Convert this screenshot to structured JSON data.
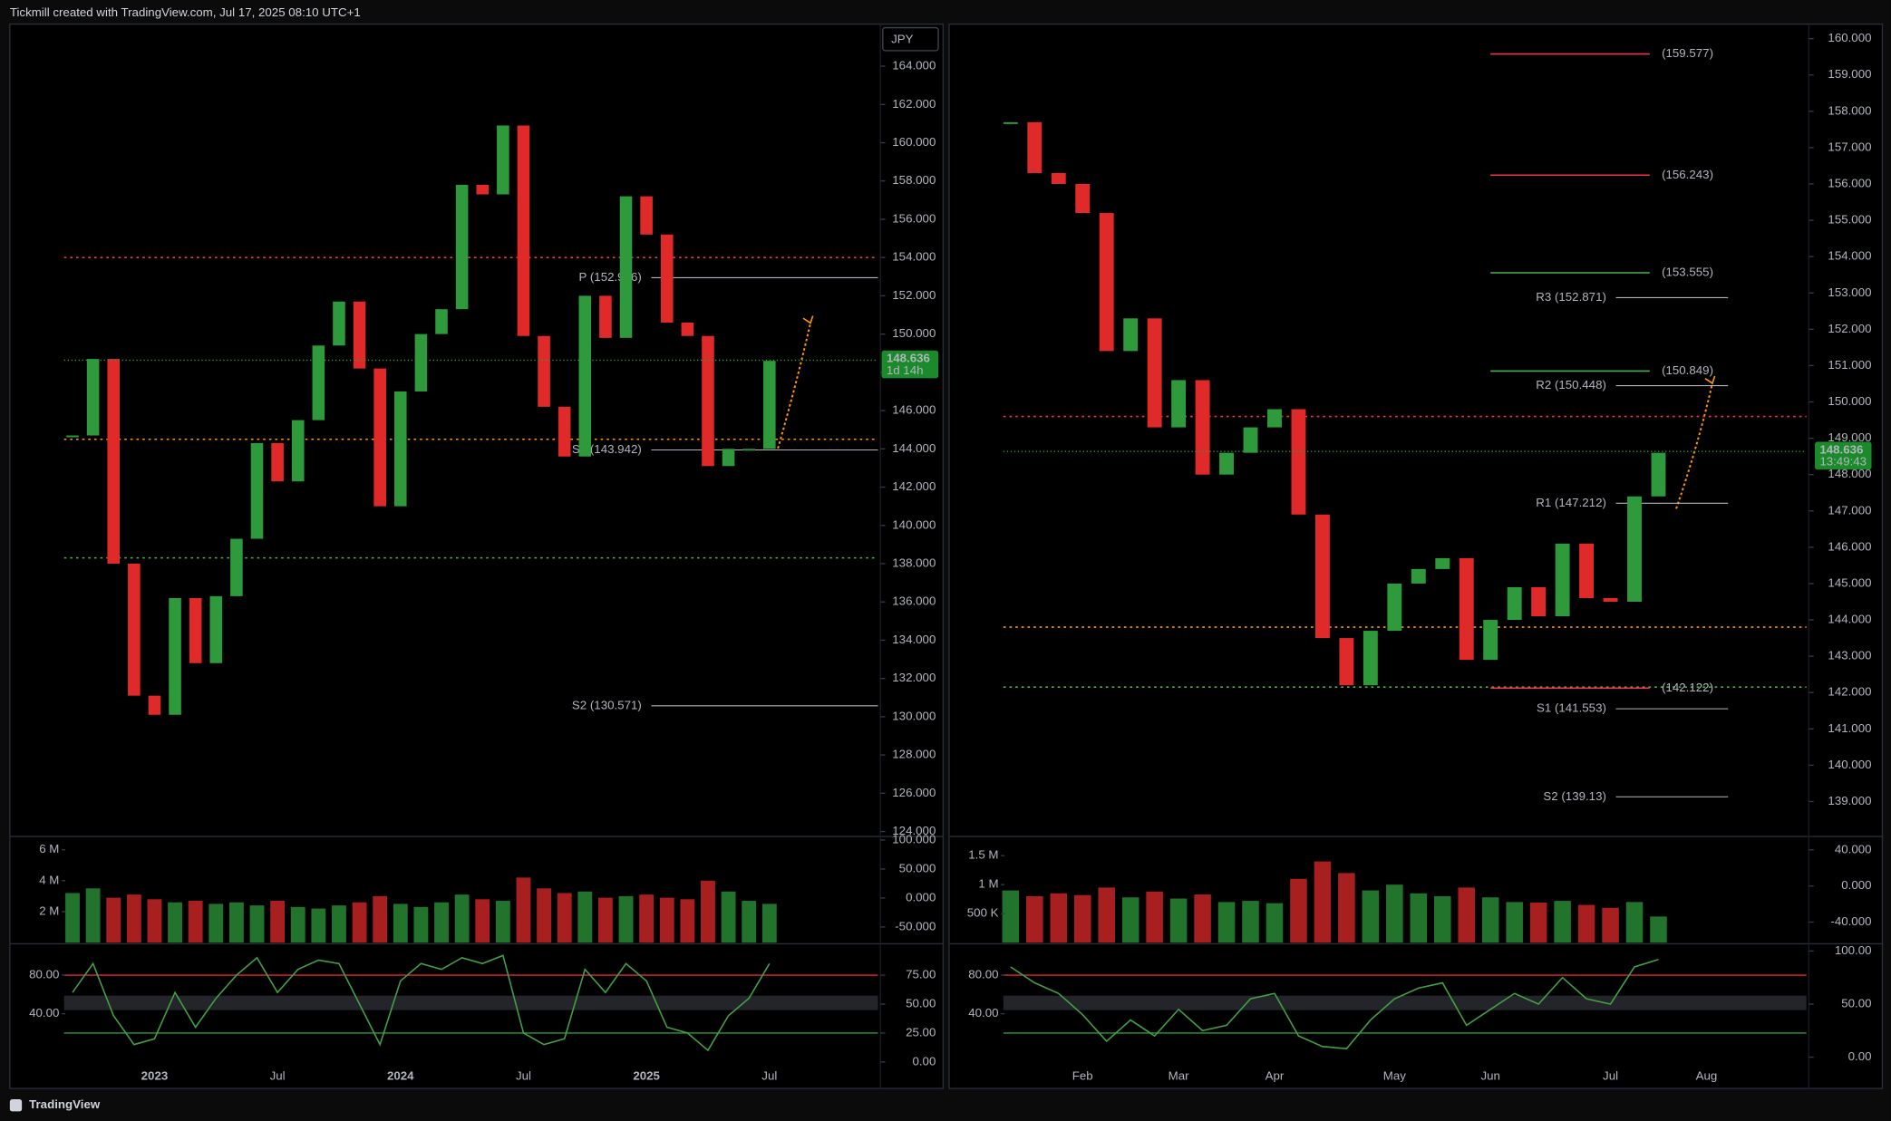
{
  "header": "Tickmill created with TradingView.com, Jul 17, 2025 08:10 UTC+1",
  "footer": "TradingView",
  "chart_data": [
    {
      "type": "candle",
      "currency": "JPY",
      "categories": [
        null,
        null,
        null,
        null,
        "2023",
        null,
        null,
        null,
        null,
        null,
        "Jul",
        null,
        null,
        null,
        null,
        null,
        "2024",
        null,
        null,
        null,
        null,
        null,
        "Jul",
        null,
        null,
        null,
        null,
        null,
        "2025",
        null,
        null,
        null,
        null,
        null,
        "Jul"
      ],
      "values": [
        144.7,
        148.7,
        138.0,
        131.1,
        130.1,
        136.2,
        132.8,
        136.3,
        139.3,
        144.3,
        142.3,
        145.5,
        149.4,
        151.7,
        148.2,
        141.0,
        147.0,
        150.0,
        151.3,
        157.8,
        157.3,
        160.9,
        149.9,
        146.2,
        143.6,
        152.0,
        149.8,
        157.2,
        155.2,
        150.6,
        149.9,
        143.1,
        144.0,
        144.0,
        148.6
      ],
      "up_color": "#2e9a3b",
      "down_color": "#e02a2a",
      "ylim": [
        123.8,
        166.2
      ],
      "yticks": [
        {
          "value": 124,
          "label": "124.000"
        },
        {
          "value": 126,
          "label": "126.000"
        },
        {
          "value": 128,
          "label": "128.000"
        },
        {
          "value": 130,
          "label": "130.000"
        },
        {
          "value": 132,
          "label": "132.000"
        },
        {
          "value": 134,
          "label": "134.000"
        },
        {
          "value": 136,
          "label": "136.000"
        },
        {
          "value": 138,
          "label": "138.000"
        },
        {
          "value": 140,
          "label": "140.000"
        },
        {
          "value": 142,
          "label": "142.000"
        },
        {
          "value": 144,
          "label": "144.000"
        },
        {
          "value": 146,
          "label": "146.000"
        },
        {
          "value": 148,
          "label": "148.000"
        },
        {
          "value": 150,
          "label": "150.000"
        },
        {
          "value": 152,
          "label": "152.000"
        },
        {
          "value": 154,
          "label": "154.000"
        },
        {
          "value": 156,
          "label": "156.000"
        },
        {
          "value": 158,
          "label": "158.000"
        },
        {
          "value": 160,
          "label": "160.000"
        },
        {
          "value": 162,
          "label": "162.000"
        },
        {
          "value": 164,
          "label": "164.000"
        }
      ],
      "levels": [
        {
          "value": 154.0,
          "color": "#f23645"
        },
        {
          "value": 144.5,
          "color": "#ff9800"
        },
        {
          "value": 138.3,
          "color": "#4caf50"
        }
      ],
      "pivots": [
        {
          "label": "P (152.946)",
          "value": 152.946
        },
        {
          "label": "S1 (143.942)",
          "value": 143.942
        },
        {
          "label": "S2 (130.571)",
          "value": 130.571
        }
      ],
      "targets": [],
      "last_price": 148.636,
      "countdown": "1d 14h",
      "volume": {
        "values": [
          3200000,
          3500000,
          2900000,
          3100000,
          2800000,
          2600000,
          2700000,
          2500000,
          2600000,
          2400000,
          2700000,
          2300000,
          2200000,
          2400000,
          2600000,
          3000000,
          2500000,
          2300000,
          2600000,
          3100000,
          2800000,
          2700000,
          4200000,
          3500000,
          3200000,
          3300000,
          2900000,
          3000000,
          3100000,
          2900000,
          2800000,
          4000000,
          3300000,
          2700000,
          2500000
        ],
        "ylim": [
          0,
          6850000
        ],
        "yticks": [
          {
            "value": 2000000,
            "label": "2 M"
          },
          {
            "value": 4000000,
            "label": "4 M"
          },
          {
            "value": 6000000,
            "label": "6 M"
          }
        ],
        "y2lim": [
          -77,
          106
        ],
        "y2ticks": [
          {
            "value": -50,
            "label": "-50.000"
          },
          {
            "value": 0,
            "label": "0.000"
          },
          {
            "value": 50,
            "label": "50.000"
          },
          {
            "value": 100,
            "label": "100.000"
          }
        ]
      },
      "oscillator": {
        "values": [
          60,
          85,
          40,
          15,
          20,
          60,
          30,
          55,
          75,
          90,
          60,
          80,
          88,
          85,
          50,
          15,
          70,
          85,
          80,
          90,
          85,
          92,
          25,
          15,
          20,
          80,
          60,
          85,
          70,
          30,
          25,
          10,
          40,
          55,
          85
        ],
        "color": "#43a047",
        "axis": "y2",
        "ylim": [
          -10,
          110
        ],
        "yticks": [
          {
            "value": 40,
            "label": "40.00"
          },
          {
            "value": 80,
            "label": "80.00"
          }
        ],
        "y2lim": [
          0,
          100
        ],
        "y2ticks": [
          {
            "value": 0,
            "label": "0.00"
          },
          {
            "value": 25,
            "label": "25.00"
          },
          {
            "value": 50,
            "label": "50.00"
          },
          {
            "value": 75,
            "label": "75.00"
          }
        ]
      }
    },
    {
      "type": "candle",
      "categories": [
        null,
        null,
        null,
        "Feb",
        null,
        null,
        null,
        "Mar",
        null,
        null,
        null,
        "Apr",
        null,
        null,
        null,
        null,
        "May",
        null,
        null,
        null,
        "Jun",
        null,
        null,
        null,
        null,
        "Jul",
        null,
        null,
        null,
        "Aug"
      ],
      "values": [
        157.7,
        156.3,
        156.0,
        155.2,
        151.4,
        152.3,
        149.3,
        150.6,
        148.0,
        148.6,
        149.3,
        149.8,
        146.9,
        143.5,
        142.2,
        143.7,
        145.0,
        145.4,
        145.7,
        142.9,
        144.0,
        144.9,
        144.1,
        146.1,
        144.6,
        144.5,
        147.4,
        148.6,
        null,
        null
      ],
      "up_color": "#2e9a3b",
      "down_color": "#e02a2a",
      "ylim": [
        138.07,
        160.4
      ],
      "yticks": [
        {
          "value": 139,
          "label": "139.000"
        },
        {
          "value": 140,
          "label": "140.000"
        },
        {
          "value": 141,
          "label": "141.000"
        },
        {
          "value": 142,
          "label": "142.000"
        },
        {
          "value": 143,
          "label": "143.000"
        },
        {
          "value": 144,
          "label": "144.000"
        },
        {
          "value": 145,
          "label": "145.000"
        },
        {
          "value": 146,
          "label": "146.000"
        },
        {
          "value": 147,
          "label": "147.000"
        },
        {
          "value": 148,
          "label": "148.000"
        },
        {
          "value": 149,
          "label": "149.000"
        },
        {
          "value": 150,
          "label": "150.000"
        },
        {
          "value": 151,
          "label": "151.000"
        },
        {
          "value": 152,
          "label": "152.000"
        },
        {
          "value": 153,
          "label": "153.000"
        },
        {
          "value": 154,
          "label": "154.000"
        },
        {
          "value": 155,
          "label": "155.000"
        },
        {
          "value": 156,
          "label": "156.000"
        },
        {
          "value": 157,
          "label": "157.000"
        },
        {
          "value": 158,
          "label": "158.000"
        },
        {
          "value": 159,
          "label": "159.000"
        },
        {
          "value": 160,
          "label": "160.000"
        }
      ],
      "levels": [
        {
          "value": 149.6,
          "color": "#f23645"
        },
        {
          "value": 143.8,
          "color": "#ff9800"
        },
        {
          "value": 142.15,
          "color": "#4caf50"
        }
      ],
      "pivots": [
        {
          "label": "R3 (152.871)",
          "value": 152.871
        },
        {
          "label": "R2 (150.448)",
          "value": 150.448
        },
        {
          "label": "R1 (147.212)",
          "value": 147.212
        },
        {
          "label": "S1 (141.553)",
          "value": 141.553
        },
        {
          "label": "S2 (139.13)",
          "value": 139.13
        }
      ],
      "targets": [
        {
          "label": "(159.577)",
          "value": 159.577,
          "color": "#f23645"
        },
        {
          "label": "(156.243)",
          "value": 156.243,
          "color": "#f23645"
        },
        {
          "label": "(153.555)",
          "value": 153.555,
          "color": "#4caf50"
        },
        {
          "label": "(150.849)",
          "value": 150.849,
          "color": "#4caf50"
        },
        {
          "label": "(142.122)",
          "value": 142.122,
          "color": "#f23645"
        }
      ],
      "last_price": 148.636,
      "countdown": "13:49:43",
      "volume": {
        "values": [
          900000,
          800000,
          850000,
          820000,
          950000,
          780000,
          880000,
          760000,
          830000,
          700000,
          720000,
          680000,
          1100000,
          1400000,
          1200000,
          900000,
          1000000,
          850000,
          800000,
          950000,
          780000,
          700000,
          690000,
          720000,
          650000,
          600000,
          700000,
          450000,
          null,
          null
        ],
        "ylim": [
          0,
          1830000
        ],
        "yticks": [
          {
            "value": 500000,
            "label": "500 K"
          },
          {
            "value": 1000000,
            "label": "1 M"
          },
          {
            "value": 1500000,
            "label": "1.5 M"
          }
        ],
        "y2lim": [
          -62.7,
          54.7
        ],
        "y2ticks": [
          {
            "value": -40,
            "label": "-40.000"
          },
          {
            "value": 0,
            "label": "0.000"
          },
          {
            "value": 40,
            "label": "40.000"
          }
        ]
      },
      "oscillator": {
        "values": [
          85,
          70,
          60,
          40,
          15,
          35,
          20,
          45,
          25,
          30,
          55,
          60,
          20,
          10,
          8,
          35,
          55,
          65,
          70,
          30,
          45,
          60,
          50,
          75,
          55,
          50,
          85,
          92,
          null,
          null
        ],
        "color": "#43a047",
        "axis": "y2",
        "ylim": [
          -10,
          110
        ],
        "yticks": [
          {
            "value": 40,
            "label": "40.00"
          },
          {
            "value": 80,
            "label": "80.00"
          }
        ],
        "y2lim": [
          -4.5,
          104.5
        ],
        "y2ticks": [
          {
            "value": 0,
            "label": "0.00"
          },
          {
            "value": 50,
            "label": "50.00"
          },
          {
            "value": 100,
            "label": "100.00"
          }
        ]
      }
    }
  ]
}
